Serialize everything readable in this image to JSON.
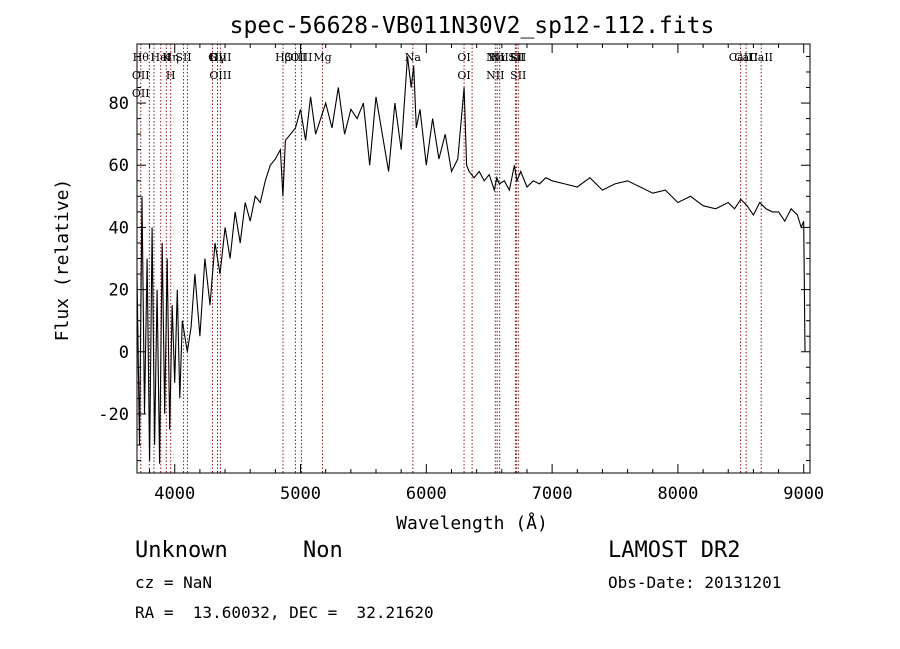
{
  "chart_data": {
    "type": "line",
    "title": "spec-56628-VB011N30V2_sp12-112.fits",
    "xlabel": "Wavelength (Å)",
    "ylabel": "Flux (relative)",
    "xlim": [
      3700,
      9050
    ],
    "ylim": [
      -39,
      99
    ],
    "xticks": [
      4000,
      5000,
      6000,
      7000,
      8000,
      9000
    ],
    "yticks": [
      -20,
      0,
      20,
      40,
      60,
      80
    ],
    "grid": false,
    "series": [
      {
        "x": [
          3700,
          3720,
          3740,
          3760,
          3780,
          3800,
          3820,
          3840,
          3860,
          3880,
          3900,
          3920,
          3940,
          3960,
          3980,
          4000,
          4020,
          4040,
          4060,
          4080,
          4100,
          4130,
          4160,
          4200,
          4240,
          4280,
          4320,
          4360,
          4400,
          4440,
          4480,
          4520,
          4560,
          4600,
          4640,
          4680,
          4720,
          4760,
          4800,
          4840,
          4860,
          4880,
          4920,
          4960,
          5000,
          5040,
          5080,
          5120,
          5160,
          5200,
          5250,
          5300,
          5350,
          5400,
          5450,
          5500,
          5550,
          5600,
          5650,
          5700,
          5750,
          5800,
          5850,
          5880,
          5900,
          5920,
          5950,
          6000,
          6050,
          6100,
          6150,
          6200,
          6250,
          6300,
          6320,
          6340,
          6380,
          6420,
          6460,
          6500,
          6540,
          6560,
          6580,
          6620,
          6660,
          6700,
          6720,
          6750,
          6800,
          6850,
          6900,
          6950,
          7000,
          7100,
          7200,
          7300,
          7400,
          7500,
          7600,
          7700,
          7800,
          7900,
          8000,
          8100,
          8200,
          8300,
          8400,
          8450,
          8500,
          8550,
          8600,
          8650,
          8700,
          8750,
          8800,
          8850,
          8900,
          8950,
          8980,
          9000,
          9010
        ],
        "y": [
          25,
          -30,
          50,
          -20,
          30,
          -35,
          40,
          -30,
          20,
          -36,
          35,
          -20,
          30,
          -25,
          15,
          -10,
          20,
          -15,
          10,
          5,
          0,
          8,
          25,
          5,
          30,
          15,
          35,
          25,
          40,
          30,
          45,
          35,
          48,
          42,
          50,
          48,
          55,
          60,
          62,
          65,
          50,
          68,
          70,
          72,
          78,
          68,
          82,
          70,
          75,
          80,
          72,
          85,
          70,
          78,
          75,
          80,
          60,
          82,
          70,
          58,
          80,
          65,
          95,
          85,
          92,
          72,
          78,
          60,
          75,
          62,
          70,
          58,
          62,
          85,
          60,
          58,
          56,
          58,
          55,
          57,
          52,
          56,
          54,
          55,
          52,
          60,
          55,
          58,
          53,
          55,
          54,
          56,
          55,
          54,
          53,
          56,
          52,
          54,
          55,
          53,
          51,
          52,
          48,
          50,
          47,
          46,
          48,
          46,
          49,
          47,
          44,
          48,
          46,
          45,
          45,
          42,
          46,
          44,
          40,
          42,
          0
        ],
        "name": ""
      }
    ],
    "lines": [
      {
        "x": 3730,
        "labels": [
          "Hθ",
          "OII",
          "OII"
        ]
      },
      {
        "x": 3798,
        "labels": []
      },
      {
        "x": 3835,
        "labels": []
      },
      {
        "x": 3889,
        "labels": [
          "HeI"
        ]
      },
      {
        "x": 3933,
        "labels": [
          "K"
        ]
      },
      {
        "x": 3968,
        "labels": [
          "Hη",
          "H"
        ]
      },
      {
        "x": 4070,
        "labels": [
          "SII"
        ]
      },
      {
        "x": 4101,
        "labels": []
      },
      {
        "x": 4300,
        "labels": [
          "G"
        ]
      },
      {
        "x": 4340,
        "labels": [
          "Hγ"
        ]
      },
      {
        "x": 4363,
        "labels": [
          "OIII",
          "OIII"
        ]
      },
      {
        "x": 4861,
        "labels": [
          "Hβ"
        ]
      },
      {
        "x": 4959,
        "labels": [
          "OIII"
        ]
      },
      {
        "x": 5007,
        "labels": [
          "OIII"
        ]
      },
      {
        "x": 5175,
        "labels": [
          "Mg"
        ]
      },
      {
        "x": 5893,
        "labels": [
          "Na"
        ]
      },
      {
        "x": 6300,
        "labels": [
          "OI",
          "OI"
        ]
      },
      {
        "x": 6364,
        "labels": []
      },
      {
        "x": 6548,
        "labels": [
          "NII",
          "NII"
        ]
      },
      {
        "x": 6563,
        "labels": [
          "Hα"
        ]
      },
      {
        "x": 6583,
        "labels": [
          "NII"
        ]
      },
      {
        "x": 6708,
        "labels": [
          "Li"
        ]
      },
      {
        "x": 6716,
        "labels": [
          "SII"
        ]
      },
      {
        "x": 6731,
        "labels": [
          "SII",
          "SII"
        ]
      },
      {
        "x": 8498,
        "labels": [
          "CaII"
        ]
      },
      {
        "x": 8542,
        "labels": [
          "CaII"
        ]
      },
      {
        "x": 8662,
        "labels": [
          "CaII"
        ]
      }
    ]
  },
  "footer": {
    "class_label": "Unknown",
    "subclass_label": "Non",
    "survey": "LAMOST DR2",
    "cz": "cz = NaN",
    "obs_date": "Obs-Date: 20131201",
    "coords": "RA =  13.60032, DEC =  32.21620"
  },
  "colors": {
    "axis": "#000000",
    "line_marker": "#8b1a1a"
  }
}
